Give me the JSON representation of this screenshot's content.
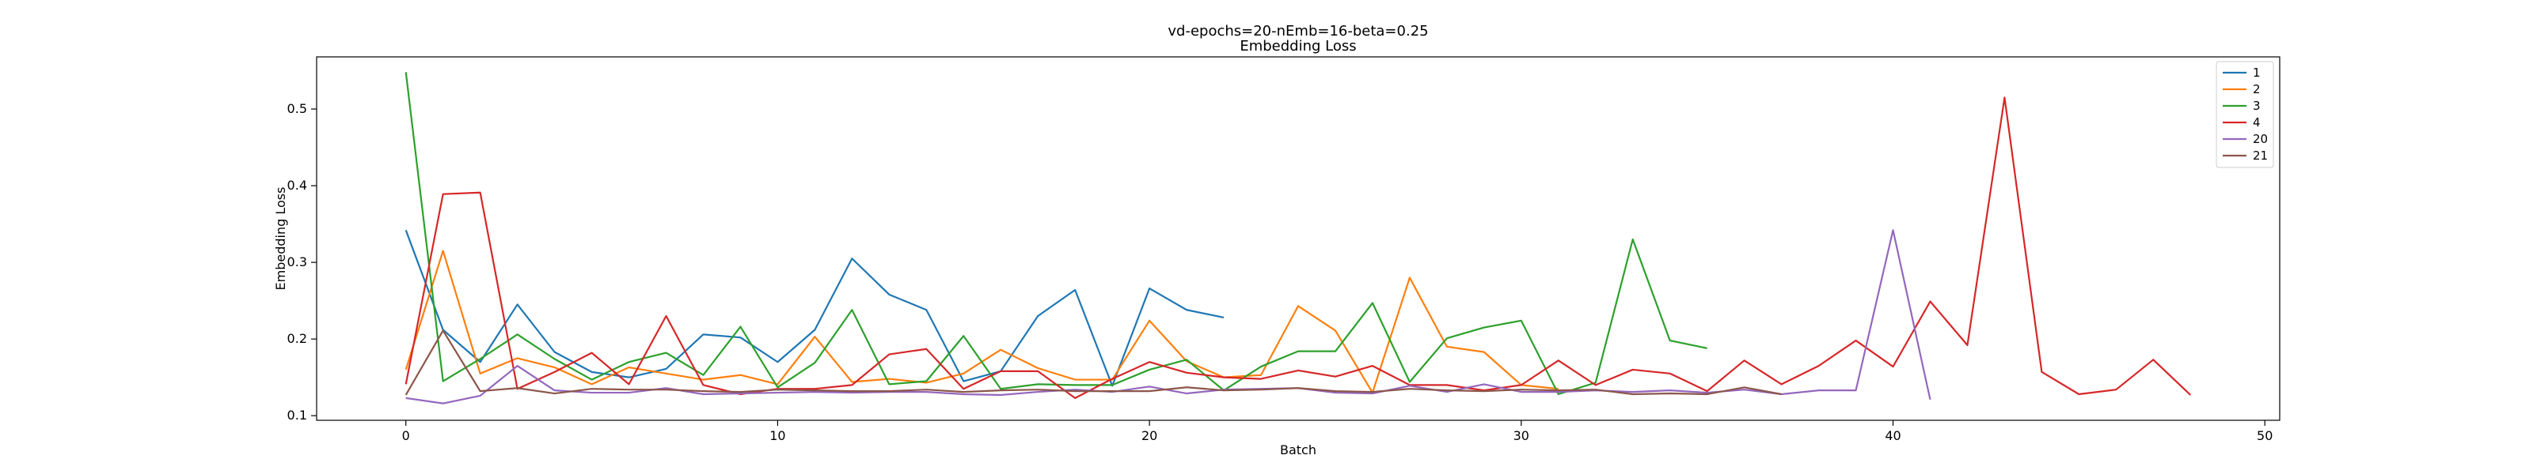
{
  "chart_data": {
    "type": "line",
    "title": "vd-epochs=20-nEmb=16-beta=0.25",
    "subtitle": "Embedding Loss",
    "xlabel": "Batch",
    "ylabel": "Embedding Loss",
    "xlim": [
      -2.4,
      50.4
    ],
    "ylim": [
      0.094,
      0.568
    ],
    "xticks": [
      0,
      10,
      20,
      30,
      40,
      50
    ],
    "yticks": [
      0.1,
      0.2,
      0.3,
      0.4,
      0.5
    ],
    "xtick_labels": [
      "0",
      "10",
      "20",
      "30",
      "40",
      "50"
    ],
    "ytick_labels": [
      "0.1",
      "0.2",
      "0.3",
      "0.4",
      "0.5"
    ],
    "grid": false,
    "legend_position": "top-right",
    "series": [
      {
        "name": "1",
        "color": "#1f77b4",
        "x": [
          0,
          1,
          2,
          3,
          4,
          5,
          6,
          7,
          8,
          9,
          10,
          11,
          12,
          13,
          14,
          15,
          16,
          17,
          18,
          19,
          20,
          21,
          22
        ],
        "values": [
          0.342,
          0.212,
          0.17,
          0.245,
          0.183,
          0.157,
          0.15,
          0.161,
          0.206,
          0.202,
          0.17,
          0.212,
          0.305,
          0.258,
          0.238,
          0.145,
          0.158,
          0.23,
          0.264,
          0.139,
          0.266,
          0.238,
          0.228
        ]
      },
      {
        "name": "2",
        "color": "#ff7f0e",
        "x": [
          0,
          1,
          2,
          3,
          4,
          5,
          6,
          7,
          8,
          9,
          10,
          11,
          12,
          13,
          14,
          15,
          16,
          17,
          18,
          19,
          20,
          21,
          22,
          23,
          24,
          25,
          26,
          27,
          28,
          29,
          30,
          31
        ],
        "values": [
          0.16,
          0.315,
          0.155,
          0.175,
          0.163,
          0.141,
          0.163,
          0.155,
          0.147,
          0.153,
          0.141,
          0.203,
          0.144,
          0.148,
          0.143,
          0.155,
          0.186,
          0.162,
          0.147,
          0.147,
          0.224,
          0.171,
          0.15,
          0.153,
          0.243,
          0.211,
          0.13,
          0.28,
          0.19,
          0.183,
          0.14,
          0.135
        ]
      },
      {
        "name": "3",
        "color": "#2ca02c",
        "x": [
          0,
          1,
          2,
          3,
          4,
          5,
          6,
          7,
          8,
          9,
          10,
          11,
          12,
          13,
          14,
          15,
          16,
          17,
          18,
          19,
          20,
          21,
          22,
          23,
          24,
          25,
          26,
          27,
          28,
          29,
          30,
          31,
          32,
          33,
          34,
          35
        ],
        "values": [
          0.548,
          0.145,
          0.174,
          0.206,
          0.174,
          0.147,
          0.17,
          0.182,
          0.153,
          0.216,
          0.137,
          0.169,
          0.238,
          0.141,
          0.145,
          0.204,
          0.135,
          0.141,
          0.14,
          0.14,
          0.16,
          0.173,
          0.133,
          0.164,
          0.184,
          0.184,
          0.247,
          0.144,
          0.201,
          0.215,
          0.224,
          0.128,
          0.143,
          0.33,
          0.198,
          0.188
        ]
      },
      {
        "name": "4",
        "color": "#d62728",
        "x": [
          0,
          1,
          2,
          3,
          4,
          5,
          6,
          7,
          8,
          9,
          10,
          11,
          12,
          13,
          14,
          15,
          16,
          17,
          18,
          19,
          20,
          21,
          22,
          23,
          24,
          25,
          26,
          27,
          28,
          29,
          30,
          31,
          32,
          33,
          34,
          35,
          36,
          37,
          38,
          39,
          40,
          41,
          42,
          43,
          44,
          45,
          46,
          47,
          48
        ],
        "values": [
          0.141,
          0.389,
          0.391,
          0.135,
          0.157,
          0.182,
          0.141,
          0.23,
          0.14,
          0.128,
          0.135,
          0.135,
          0.14,
          0.18,
          0.187,
          0.135,
          0.158,
          0.158,
          0.123,
          0.148,
          0.17,
          0.156,
          0.15,
          0.148,
          0.159,
          0.151,
          0.165,
          0.14,
          0.14,
          0.133,
          0.14,
          0.172,
          0.14,
          0.16,
          0.155,
          0.132,
          0.172,
          0.141,
          0.165,
          0.198,
          0.164,
          0.249,
          0.192,
          0.515,
          0.157,
          0.128,
          0.134,
          0.173,
          0.127
        ]
      },
      {
        "name": "20",
        "color": "#9467bd",
        "x": [
          0,
          1,
          2,
          3,
          4,
          5,
          6,
          7,
          8,
          9,
          10,
          11,
          12,
          13,
          14,
          15,
          16,
          17,
          18,
          19,
          20,
          21,
          22,
          23,
          24,
          25,
          26,
          27,
          28,
          29,
          30,
          31,
          32,
          33,
          34,
          35,
          36,
          37,
          38,
          39,
          40,
          41
        ],
        "values": [
          0.123,
          0.116,
          0.126,
          0.165,
          0.133,
          0.13,
          0.13,
          0.136,
          0.128,
          0.129,
          0.13,
          0.131,
          0.13,
          0.131,
          0.131,
          0.128,
          0.127,
          0.131,
          0.134,
          0.131,
          0.138,
          0.129,
          0.134,
          0.135,
          0.136,
          0.13,
          0.129,
          0.139,
          0.131,
          0.141,
          0.131,
          0.131,
          0.133,
          0.131,
          0.133,
          0.13,
          0.134,
          0.128,
          0.133,
          0.133,
          0.342,
          0.121
        ]
      },
      {
        "name": "21",
        "color": "#8c564b",
        "x": [
          0,
          1,
          2,
          3,
          4,
          5,
          6,
          7,
          8,
          9,
          10,
          11,
          12,
          13,
          14,
          15,
          16,
          17,
          18,
          19,
          20,
          21,
          22,
          23,
          24,
          25,
          26,
          27,
          28,
          29,
          30,
          31,
          32,
          33,
          34,
          35,
          36,
          37
        ],
        "values": [
          0.127,
          0.211,
          0.132,
          0.136,
          0.129,
          0.135,
          0.134,
          0.134,
          0.132,
          0.131,
          0.134,
          0.133,
          0.132,
          0.132,
          0.134,
          0.131,
          0.133,
          0.134,
          0.132,
          0.132,
          0.132,
          0.137,
          0.133,
          0.134,
          0.136,
          0.132,
          0.131,
          0.135,
          0.133,
          0.132,
          0.134,
          0.133,
          0.134,
          0.128,
          0.129,
          0.128,
          0.137,
          0.128
        ]
      }
    ]
  }
}
